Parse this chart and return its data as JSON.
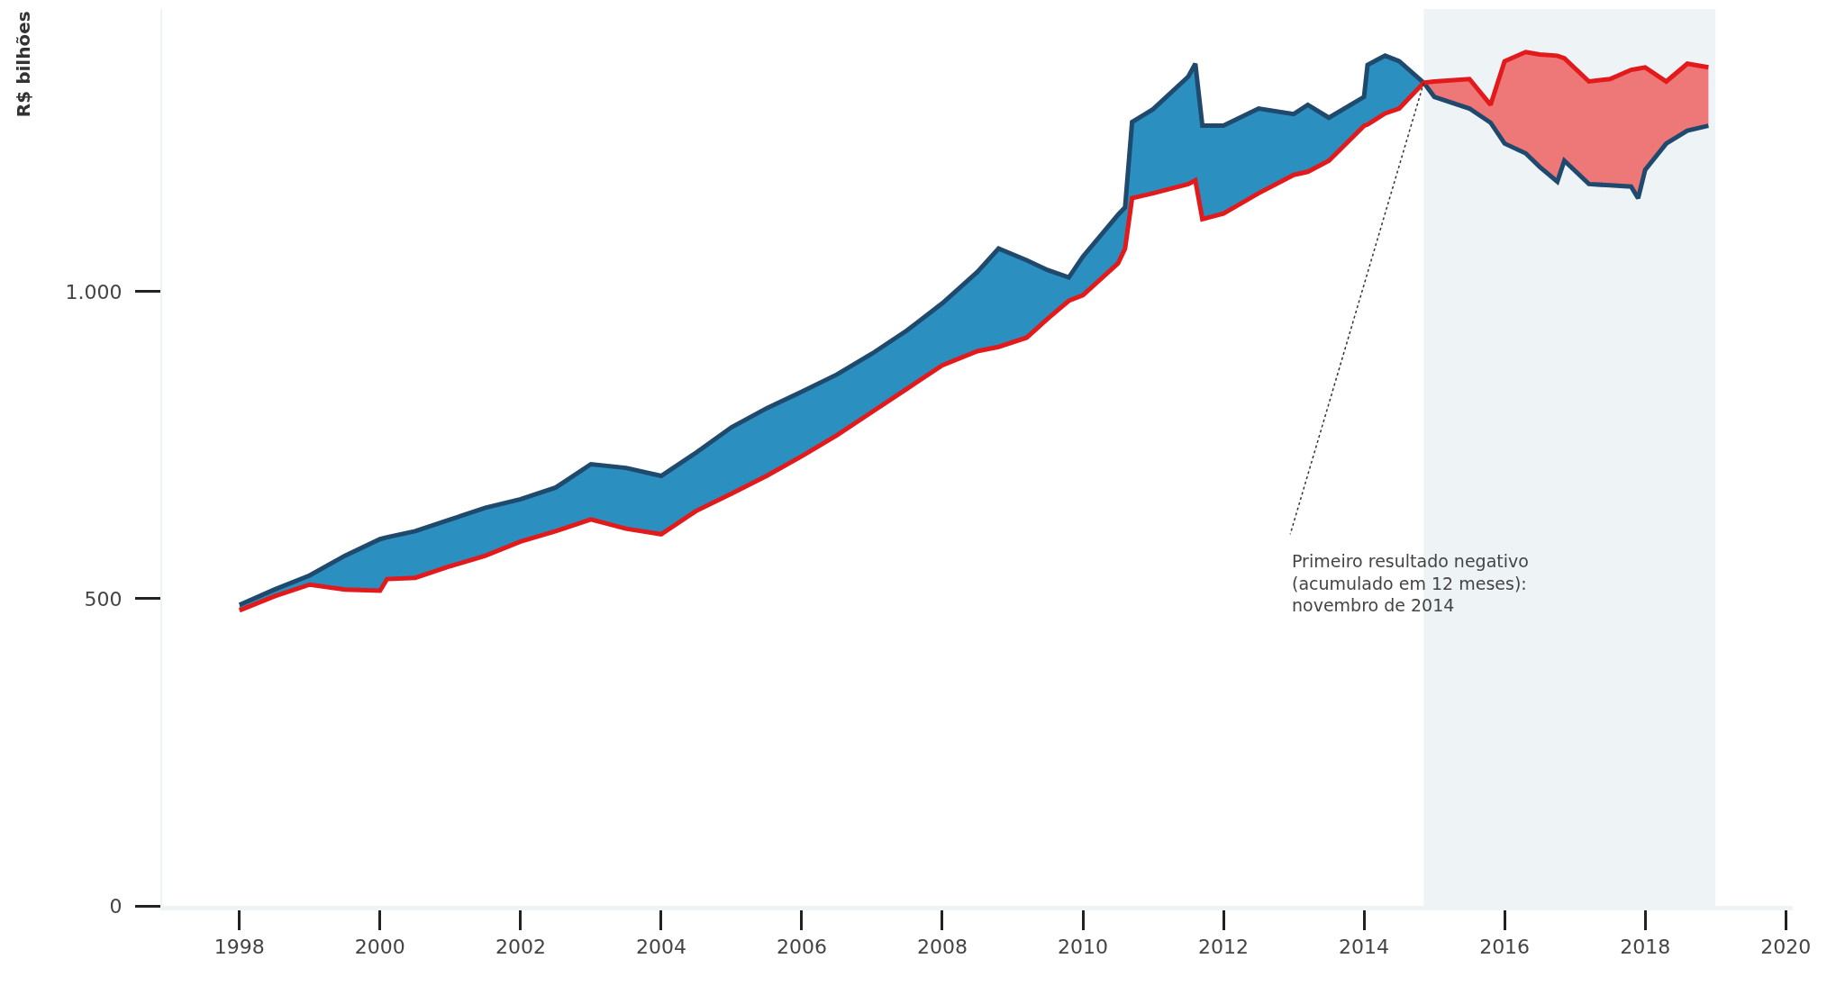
{
  "chart_data": {
    "type": "line",
    "ylabel": "R$ bilhões",
    "x": [
      1998.0,
      1998.5,
      1999.0,
      1999.5,
      2000.0,
      2000.1,
      2000.5,
      2001.0,
      2001.5,
      2002.0,
      2002.5,
      2003.0,
      2003.5,
      2004.0,
      2004.5,
      2005.0,
      2005.5,
      2006.0,
      2006.5,
      2007.0,
      2007.5,
      2008.0,
      2008.5,
      2008.8,
      2009.2,
      2009.5,
      2009.8,
      2010.0,
      2010.5,
      2010.6,
      2010.7,
      2011.0,
      2011.5,
      2011.6,
      2011.7,
      2012.0,
      2012.5,
      2013.0,
      2013.2,
      2013.5,
      2014.0,
      2014.05,
      2014.3,
      2014.5,
      2014.85,
      2015.0,
      2015.5,
      2015.8,
      2016.0,
      2016.3,
      2016.5,
      2016.75,
      2016.85,
      2017.2,
      2017.5,
      2017.8,
      2017.9,
      2018.0,
      2018.3,
      2018.6,
      2018.9
    ],
    "series": [
      {
        "color": "#1f4a6e",
        "values": [
          490,
          515,
          538,
          570,
          597,
          600,
          610,
          629,
          648,
          662,
          681,
          719,
          713,
          700,
          738,
          779,
          810,
          837,
          865,
          899,
          937,
          981,
          1032,
          1070,
          1051,
          1035,
          1023,
          1057,
          1125,
          1137,
          1276,
          1297,
          1350,
          1371,
          1270,
          1270,
          1298,
          1289,
          1304,
          1283,
          1317,
          1369,
          1384,
          1375,
          1340,
          1317,
          1298,
          1275,
          1241,
          1225,
          1203,
          1179,
          1213,
          1175,
          1173,
          1171,
          1152,
          1198,
          1241,
          1262,
          1270
        ],
        "upper": [
          490,
          515,
          538,
          570,
          597,
          600,
          610,
          629,
          648,
          662,
          681,
          719,
          713,
          700,
          738,
          779,
          810,
          837,
          865,
          899,
          937,
          981,
          1032,
          1070,
          1051,
          1035,
          1023,
          1057,
          1125,
          1137,
          1276,
          1297,
          1350,
          1371,
          1270,
          1270,
          1298,
          1289,
          1304,
          1283,
          1317,
          1369,
          1384,
          1375,
          1340,
          null,
          null,
          null,
          null,
          null,
          null,
          null,
          null,
          null,
          null,
          null,
          null,
          null,
          null,
          null,
          null
        ],
        "lower": [
          481,
          504,
          523,
          515,
          513,
          532,
          534,
          553,
          570,
          593,
          610,
          629,
          614,
          605,
          643,
          671,
          700,
          732,
          766,
          804,
          842,
          880,
          903,
          910,
          925,
          956,
          985,
          994,
          1046,
          1070,
          1152,
          1160,
          1175,
          1181,
          1118,
          1127,
          1160,
          1190,
          1195,
          1213,
          1270,
          1272,
          1290,
          1298,
          1340,
          null,
          null,
          null,
          null,
          null,
          null,
          null,
          null,
          null,
          null,
          null,
          null,
          null,
          null,
          null,
          null
        ]
      },
      {
        "color": "#e31a1c",
        "values": [
          481,
          504,
          523,
          515,
          513,
          532,
          534,
          553,
          570,
          593,
          610,
          629,
          614,
          605,
          643,
          671,
          700,
          732,
          766,
          804,
          842,
          880,
          903,
          910,
          925,
          956,
          985,
          994,
          1046,
          1070,
          1152,
          1160,
          1175,
          1181,
          1118,
          1127,
          1160,
          1190,
          1195,
          1213,
          1270,
          1272,
          1290,
          1298,
          1340,
          1342,
          1346,
          1304,
          1375,
          1390,
          1386,
          1384,
          1380,
          1342,
          1346,
          1361,
          1363,
          1365,
          1342,
          1371,
          1365
        ],
        "upper": [
          null,
          null,
          null,
          null,
          null,
          null,
          null,
          null,
          null,
          null,
          null,
          null,
          null,
          null,
          null,
          null,
          null,
          null,
          null,
          null,
          null,
          null,
          null,
          null,
          null,
          null,
          null,
          null,
          null,
          null,
          null,
          null,
          null,
          null,
          null,
          null,
          null,
          null,
          null,
          null,
          null,
          null,
          null,
          null,
          1340,
          1342,
          1346,
          1304,
          1375,
          1390,
          1386,
          1384,
          1380,
          1342,
          1346,
          1361,
          1363,
          1365,
          1342,
          1371,
          1365
        ],
        "lower": [
          null,
          null,
          null,
          null,
          null,
          null,
          null,
          null,
          null,
          null,
          null,
          null,
          null,
          null,
          null,
          null,
          null,
          null,
          null,
          null,
          null,
          null,
          null,
          null,
          null,
          null,
          null,
          null,
          null,
          null,
          null,
          null,
          null,
          null,
          null,
          null,
          null,
          null,
          null,
          null,
          null,
          null,
          null,
          null,
          1340,
          1317,
          1298,
          1275,
          1241,
          1225,
          1203,
          1179,
          1213,
          1175,
          1173,
          1171,
          1152,
          1198,
          1241,
          1262,
          1270
        ]
      }
    ],
    "xlim": [
      1996.9,
      2020.1
    ],
    "xticks": [
      1998,
      2000,
      2002,
      2004,
      2006,
      2008,
      2010,
      2012,
      2014,
      2016,
      2018,
      2020
    ],
    "ylim": [
      0,
      1460
    ],
    "yticks": [
      0,
      500,
      {
        "value": 1000,
        "label": "1.000"
      }
    ],
    "bands": [
      {
        "axis": "x",
        "from": 2014.85,
        "to": 2019.0,
        "color": "#eef3f6"
      }
    ],
    "annotations": [
      {
        "text": "Primeiro resultado negativo\n(acumulado em 12 meses):\nnovembro de 2014",
        "x": 2014.85,
        "y": 1340
      }
    ],
    "grid": false,
    "marker": "none",
    "line_style": "solid"
  }
}
